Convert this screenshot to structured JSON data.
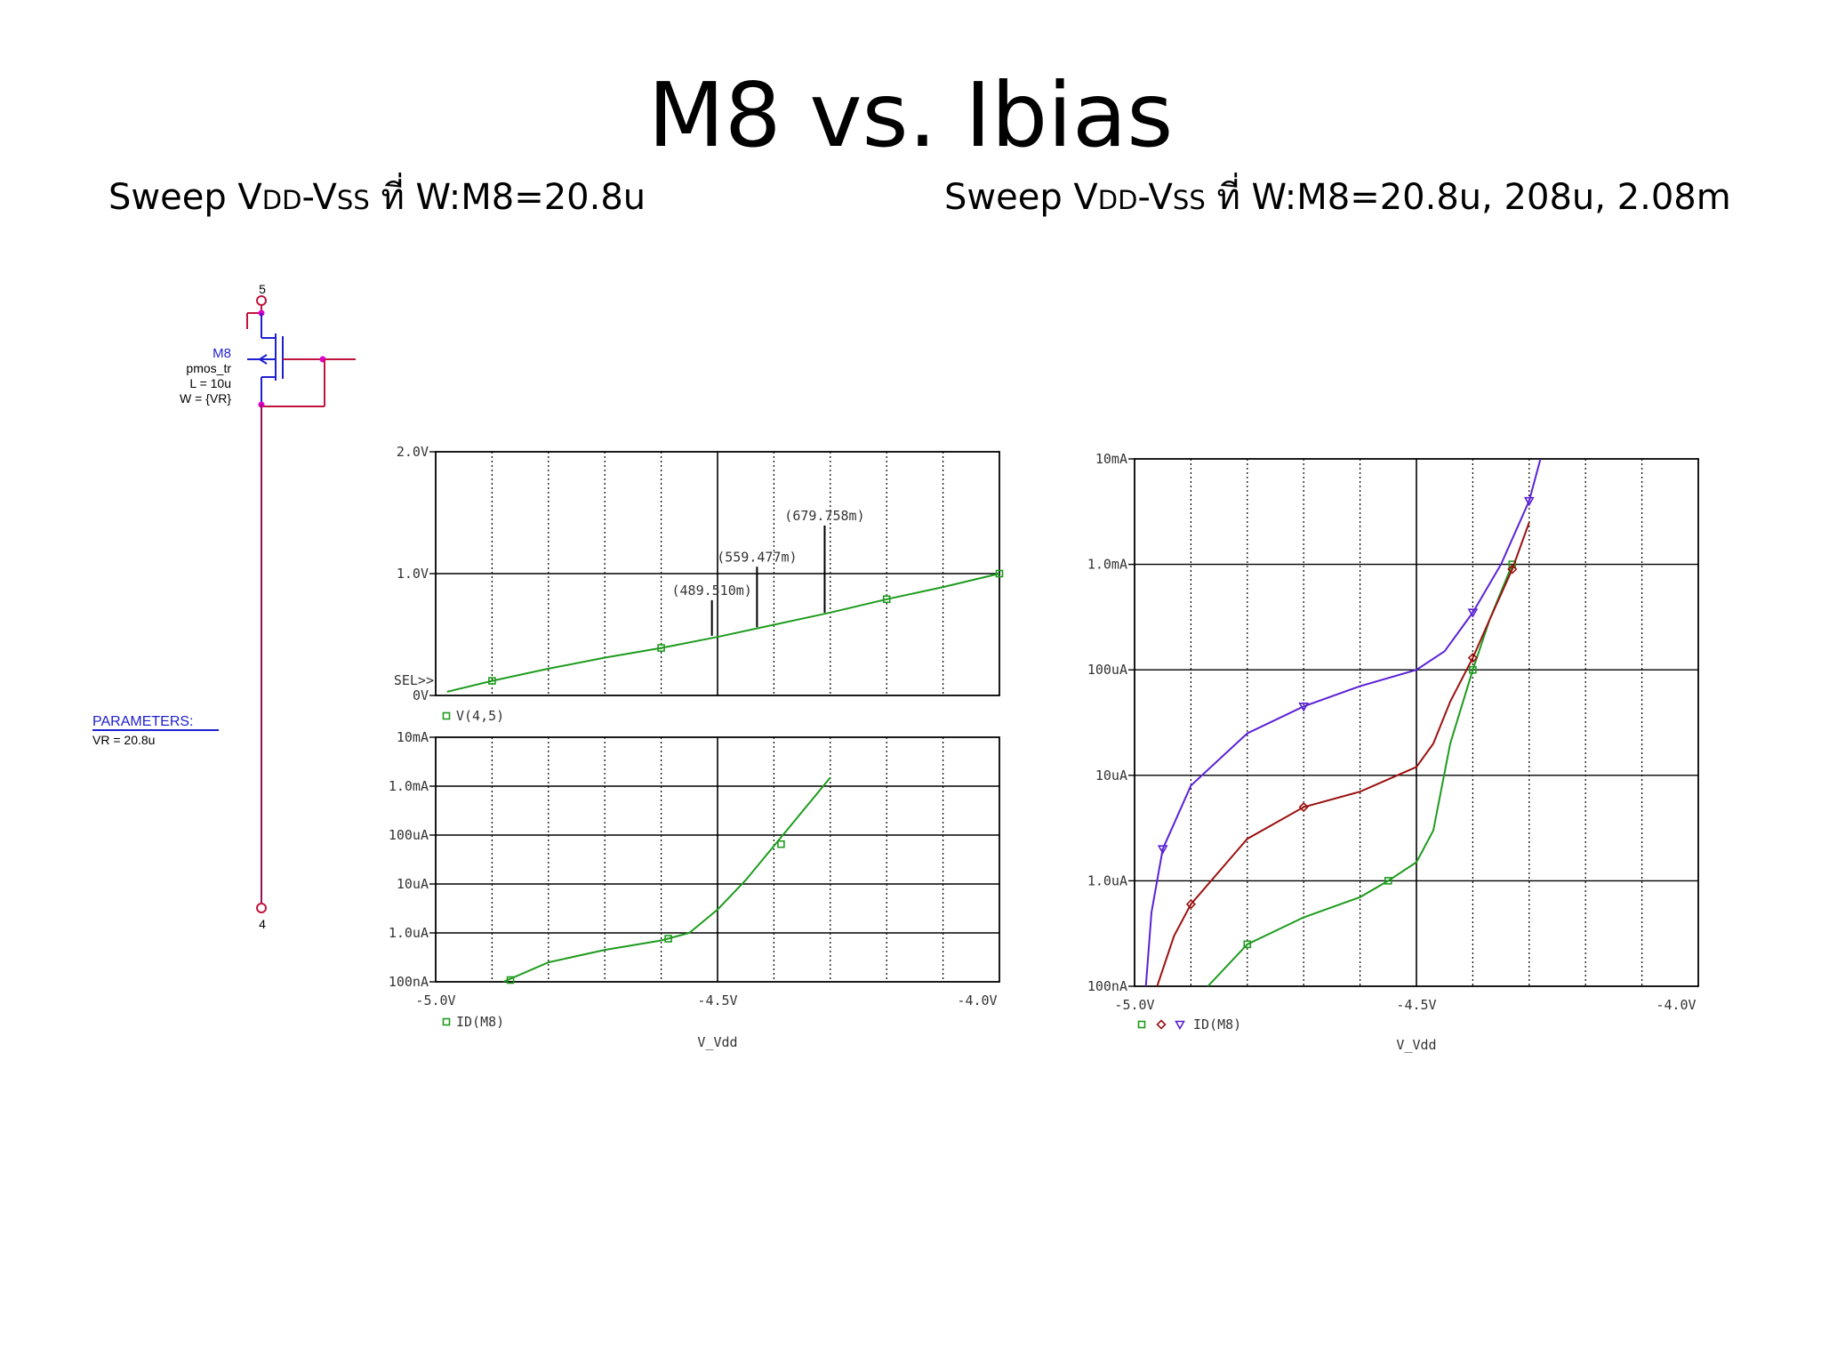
{
  "slide": {
    "title": "M8 vs. Ibias",
    "left_subtitle": {
      "pre": "Sweep V",
      "sub1": "DD",
      "mid": "-V",
      "sub2": "SS",
      "post": " ที่ W:M8=20.8u"
    },
    "right_subtitle": {
      "pre": "Sweep V",
      "sub1": "DD",
      "mid": "-V",
      "sub2": "SS",
      "post": " ที่ W:M8=20.8u, 208u, 2.08m"
    }
  },
  "schematic": {
    "node_top": "5",
    "node_bottom": "4",
    "device_name": "M8",
    "device_model": "pmos_tr",
    "device_L": "L = 10u",
    "device_W": "W = {VR}",
    "params_title": "PARAMETERS:",
    "params_value": "VR = 20.8u"
  },
  "colors": {
    "green": "#1e9b1e",
    "red": "#9b1111",
    "purple": "#5a21d6",
    "axis": "#000000",
    "schematic_red": "#c0143c",
    "schematic_blue": "#1f1fd0",
    "magenta": "#e000c8"
  },
  "chart_data": [
    {
      "type": "line",
      "xlabel": "",
      "ylabel": "",
      "xlim": [
        -5.0,
        -4.0
      ],
      "ylim": [
        0,
        2.0
      ],
      "yticks": [
        "2.0V",
        "1.0V",
        "0V"
      ],
      "y_extra_label": "SEL>>",
      "legend": "V(4,5)",
      "series": [
        {
          "name": "V(4,5)",
          "color": "green",
          "x": [
            -4.98,
            -4.9,
            -4.8,
            -4.7,
            -4.6,
            -4.5,
            -4.4,
            -4.3,
            -4.2,
            -4.1,
            -4.0
          ],
          "y": [
            0.03,
            0.12,
            0.22,
            0.31,
            0.39,
            0.48,
            0.58,
            0.68,
            0.79,
            0.89,
            1.0
          ]
        }
      ],
      "annotations": [
        {
          "text": "(489.510m)",
          "x": -4.51,
          "y": 0.49
        },
        {
          "text": "(559.477m)",
          "x": -4.43,
          "y": 0.56
        },
        {
          "text": "(679.758m)",
          "x": -4.31,
          "y": 0.68
        }
      ]
    },
    {
      "type": "line",
      "xlabel": "V_Vdd",
      "ylabel": "",
      "xlim": [
        -5.0,
        -4.0
      ],
      "ylim": [
        "100nA",
        "10mA"
      ],
      "scale": "log",
      "yticks": [
        "10mA",
        "1.0mA",
        "100uA",
        "10uA",
        "1.0uA",
        "100nA"
      ],
      "xticks": [
        "-5.0V",
        "-4.5V",
        "-4.0V"
      ],
      "legend": "ID(M8)",
      "series": [
        {
          "name": "ID(M8)",
          "color": "green",
          "x": [
            -4.88,
            -4.8,
            -4.7,
            -4.6,
            -4.55,
            -4.5,
            -4.45,
            -4.4,
            -4.35,
            -4.3
          ],
          "y": [
            1e-07,
            2.5e-07,
            4.5e-07,
            7e-07,
            1e-06,
            3e-06,
            1.2e-05,
            6e-05,
            0.0003,
            0.0015
          ]
        }
      ]
    },
    {
      "type": "line",
      "xlabel": "V_Vdd",
      "ylabel": "",
      "xlim": [
        -5.0,
        -4.0
      ],
      "ylim": [
        "100nA",
        "10mA"
      ],
      "scale": "log",
      "yticks": [
        "10mA",
        "1.0mA",
        "100uA",
        "10uA",
        "1.0uA",
        "100nA"
      ],
      "xticks": [
        "-5.0V",
        "-4.5V",
        "-4.0V"
      ],
      "legend": "ID(M8)",
      "series": [
        {
          "name": "",
          "color": "green",
          "x": [
            -4.87,
            -4.8,
            -4.7,
            -4.6,
            -4.55,
            -4.5,
            -4.47,
            -4.44,
            -4.4,
            -4.37,
            -4.33
          ],
          "y": [
            1e-07,
            2.5e-07,
            4.5e-07,
            7e-07,
            1e-06,
            1.5e-06,
            3e-06,
            2e-05,
            0.0001,
            0.0003,
            0.001
          ]
        },
        {
          "name": "",
          "color": "red",
          "x": [
            -4.96,
            -4.93,
            -4.9,
            -4.8,
            -4.7,
            -4.6,
            -4.5,
            -4.47,
            -4.44,
            -4.4,
            -4.37,
            -4.33,
            -4.3
          ],
          "y": [
            1e-07,
            3e-07,
            6e-07,
            2.5e-06,
            5e-06,
            7e-06,
            1.2e-05,
            2e-05,
            5e-05,
            0.00013,
            0.0003,
            0.0009,
            0.0025
          ]
        },
        {
          "name": "",
          "color": "purple",
          "x": [
            -4.98,
            -4.97,
            -4.95,
            -4.9,
            -4.8,
            -4.7,
            -4.6,
            -4.5,
            -4.45,
            -4.4,
            -4.35,
            -4.3,
            -4.28
          ],
          "y": [
            1e-07,
            5e-07,
            2e-06,
            8e-06,
            2.5e-05,
            4.5e-05,
            7e-05,
            0.0001,
            0.00015,
            0.00035,
            0.001,
            0.004,
            0.01
          ]
        }
      ]
    }
  ]
}
